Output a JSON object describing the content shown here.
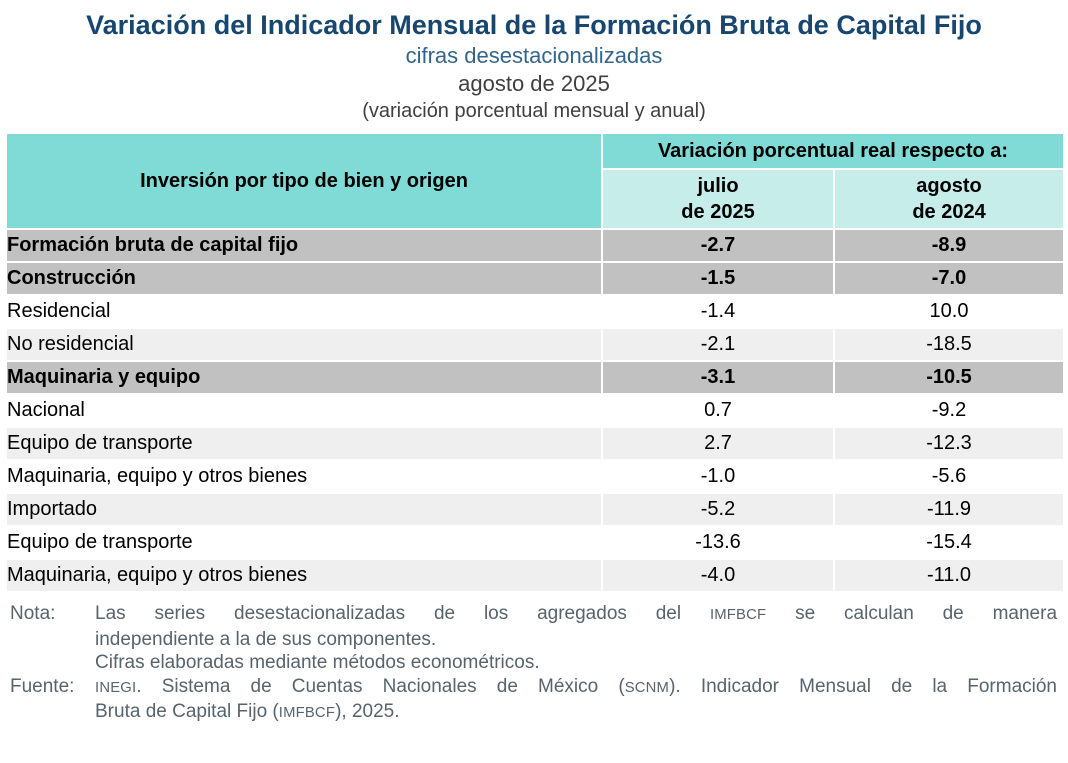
{
  "colors": {
    "teal_header": "#80DAD5",
    "teal_subheader": "#C6EDEA",
    "row_section_gray": "#C1C1C1",
    "row_alt_gray": "#EFEFEF",
    "title_navy": "#17466F",
    "subtitle_blue": "#33658C",
    "text_dark": "#3F3F3F",
    "note_slate": "#57646E"
  },
  "header": {
    "title": "Variación del Indicador Mensual de la Formación Bruta de Capital Fijo",
    "subtitle": "cifras desestacionalizadas",
    "period": "agosto de 2025",
    "measure_note": "(variación porcentual mensual y anual)"
  },
  "table": {
    "row_header": "Inversión por tipo de bien y origen",
    "col_group_header": "Variación porcentual real respecto a:",
    "columns": [
      {
        "month": "julio",
        "year": "de 2025"
      },
      {
        "month": "agosto",
        "year": "de 2024"
      }
    ],
    "rows": [
      {
        "label": "Formación bruta de capital fijo",
        "level": 0,
        "bold": true,
        "bg": "gray",
        "values": [
          "-2.7",
          "-8.9"
        ]
      },
      {
        "label": "Construcción",
        "level": 1,
        "bold": true,
        "bg": "gray",
        "values": [
          "-1.5",
          "-7.0"
        ]
      },
      {
        "label": "Residencial",
        "level": 2,
        "bold": false,
        "bg": "white",
        "values": [
          "-1.4",
          "10.0"
        ]
      },
      {
        "label": "No residencial",
        "level": 2,
        "bold": false,
        "bg": "light",
        "values": [
          "-2.1",
          "-18.5"
        ]
      },
      {
        "label": "Maquinaria y equipo",
        "level": 1,
        "bold": true,
        "bg": "gray",
        "values": [
          "-3.1",
          "-10.5"
        ]
      },
      {
        "label": "Nacional",
        "level": 2,
        "bold": false,
        "bg": "white",
        "values": [
          "0.7",
          "-9.2"
        ]
      },
      {
        "label": "Equipo de transporte",
        "level": 3,
        "bold": false,
        "bg": "light",
        "values": [
          "2.7",
          "-12.3"
        ]
      },
      {
        "label": "Maquinaria, equipo y otros bienes",
        "level": 3,
        "bold": false,
        "bg": "white",
        "values": [
          "-1.0",
          "-5.6"
        ]
      },
      {
        "label": "Importado",
        "level": 2,
        "bold": false,
        "bg": "light",
        "values": [
          "-5.2",
          "-11.9"
        ]
      },
      {
        "label": "Equipo de transporte",
        "level": 3,
        "bold": false,
        "bg": "white",
        "values": [
          "-13.6",
          "-15.4"
        ]
      },
      {
        "label": "Maquinaria, equipo y otros bienes",
        "level": 3,
        "bold": false,
        "bg": "light",
        "values": [
          "-4.0",
          "-11.0"
        ]
      }
    ]
  },
  "footnotes": [
    {
      "label": "Nota:",
      "lines": [
        {
          "justify": true,
          "segments": [
            {
              "t": "Las series desestacionalizadas de los agregados del "
            },
            {
              "t": "IMFBCF",
              "acronym": true
            },
            {
              "t": " se calculan de manera"
            }
          ]
        },
        {
          "justify": false,
          "segments": [
            {
              "t": "independiente a la de sus componentes."
            }
          ]
        }
      ]
    },
    {
      "label": "",
      "lines": [
        {
          "justify": false,
          "segments": [
            {
              "t": "Cifras elaboradas mediante métodos econométricos."
            }
          ]
        }
      ]
    },
    {
      "label": "Fuente:",
      "lines": [
        {
          "justify": true,
          "segments": [
            {
              "t": "INEGI",
              "acronym": true
            },
            {
              "t": ". Sistema de Cuentas Nacionales de México ("
            },
            {
              "t": "SCNM",
              "acronym": true
            },
            {
              "t": "). Indicador Mensual de la Formación"
            }
          ]
        },
        {
          "justify": false,
          "segments": [
            {
              "t": "Bruta de Capital Fijo ("
            },
            {
              "t": "IMFBCF",
              "acronym": true
            },
            {
              "t": "), 2025."
            }
          ]
        }
      ]
    }
  ]
}
